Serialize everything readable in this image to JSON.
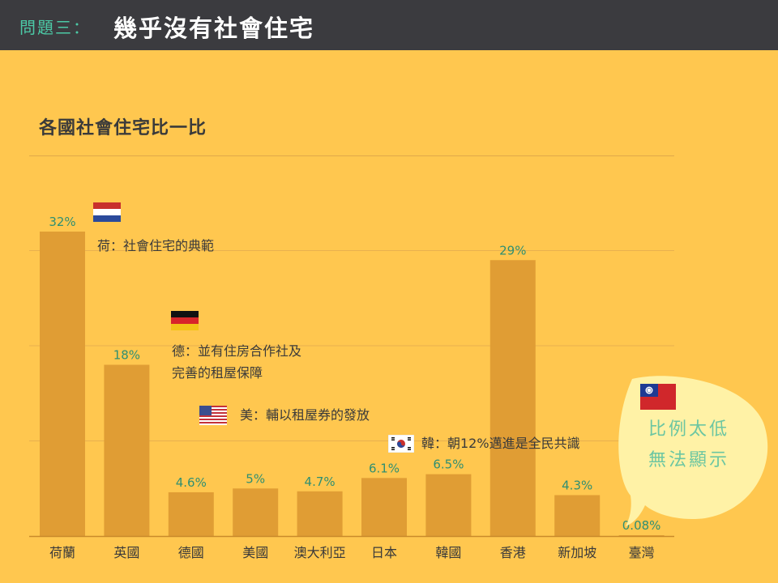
{
  "header": {
    "label": "問題三：",
    "title": "幾乎沒有社會住宅"
  },
  "chart_data": {
    "type": "bar",
    "title": "各國社會住宅比一比",
    "categories": [
      "荷蘭",
      "英國",
      "德國",
      "美國",
      "澳大利亞",
      "日本",
      "韓國",
      "香港",
      "新加坡",
      "臺灣"
    ],
    "values": [
      32,
      18,
      4.6,
      5,
      4.7,
      6.1,
      6.5,
      29,
      4.3,
      0.08
    ],
    "data_labels": [
      "32%",
      "18%",
      "4.6%",
      "5%",
      "4.7%",
      "6.1%",
      "6.5%",
      "29%",
      "4.3%",
      "0.08%"
    ],
    "ylim": [
      0,
      40
    ],
    "grid": true,
    "colors": {
      "bar": "#e09d34",
      "label": "#2f8f72",
      "axis_text": "#3a3a3a",
      "grid": "#e8b04f"
    }
  },
  "annotations": {
    "netherlands": "荷：社會住宅的典範",
    "germany_line1": "德：並有住房合作社及",
    "germany_line2": "完善的租屋保障",
    "usa": "美：輔以租屋券的發放",
    "korea": "韓：朝12%邁進是全民共識",
    "taiwan_bubble_line1": "比例太低",
    "taiwan_bubble_line2": "無法顯示"
  },
  "flags": [
    "netherlands-flag",
    "germany-flag",
    "usa-flag",
    "korea-flag",
    "taiwan-flag"
  ]
}
